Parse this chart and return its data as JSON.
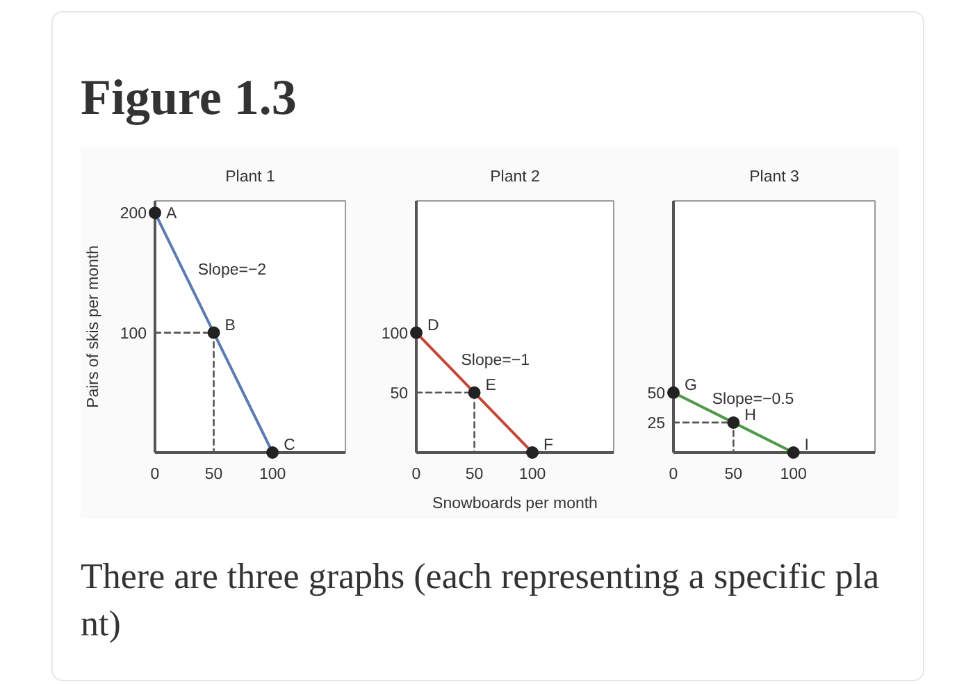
{
  "chart_data": [
    {
      "type": "other",
      "title": "Figure 1.3"
    },
    {
      "type": "line",
      "title": "Plant 1",
      "ylabel": "Pairs of skis per month",
      "xlim": [
        0,
        162
      ],
      "ylim": [
        0,
        210
      ],
      "xticks": [
        0,
        50,
        100
      ],
      "yticks": [
        100,
        200
      ],
      "series": [
        {
          "type": "line",
          "line_style": "dashed",
          "color": "#555555",
          "x": [
            0,
            50,
            50
          ],
          "values": [
            100,
            100,
            0
          ]
        },
        {
          "type": "line",
          "color": "#5b7bb2",
          "x": [
            0,
            50,
            100
          ],
          "values": [
            200,
            100,
            0
          ]
        },
        {
          "type": "scatter",
          "marker": "circle",
          "color": "#222222",
          "x": [
            0,
            50,
            100
          ],
          "values": [
            200,
            100,
            0
          ]
        }
      ],
      "annotations": [
        {
          "text": "A",
          "x": 0,
          "y": 200
        },
        {
          "text": "B",
          "x": 50,
          "y": 100
        },
        {
          "text": "C",
          "x": 100,
          "y": 0
        },
        {
          "text": "Slope=−2",
          "x": 27,
          "y": 146
        }
      ]
    },
    {
      "type": "line",
      "title": "Plant 2",
      "xlabel": "Snowboards per month",
      "xlim": [
        0,
        170
      ],
      "ylim": [
        0,
        210
      ],
      "xticks": [
        0,
        50,
        100
      ],
      "yticks": [
        50,
        100
      ],
      "series": [
        {
          "type": "line",
          "line_style": "dashed",
          "color": "#555555",
          "x": [
            0,
            50,
            50
          ],
          "values": [
            50,
            50,
            0
          ]
        },
        {
          "type": "line",
          "color": "#c4473a",
          "x": [
            0,
            50,
            100
          ],
          "values": [
            100,
            50,
            0
          ]
        },
        {
          "type": "scatter",
          "marker": "circle",
          "color": "#222222",
          "x": [
            0,
            50,
            100
          ],
          "values": [
            100,
            50,
            0
          ]
        }
      ],
      "annotations": [
        {
          "text": "D",
          "x": 0,
          "y": 100
        },
        {
          "text": "E",
          "x": 50,
          "y": 50
        },
        {
          "text": "F",
          "x": 100,
          "y": 0
        },
        {
          "text": "Slope=−1",
          "x": 29,
          "y": 71
        }
      ]
    },
    {
      "type": "line",
      "title": "Plant 3",
      "xlim": [
        0,
        168
      ],
      "ylim": [
        0,
        210
      ],
      "xticks": [
        0,
        50,
        100
      ],
      "yticks": [
        25,
        50
      ],
      "series": [
        {
          "type": "line",
          "line_style": "dashed",
          "color": "#555555",
          "x": [
            0,
            50,
            50
          ],
          "values": [
            25,
            25,
            0
          ]
        },
        {
          "type": "line",
          "color": "#4e9a4a",
          "x": [
            0,
            50,
            100
          ],
          "values": [
            50,
            25,
            0
          ]
        },
        {
          "type": "scatter",
          "marker": "circle",
          "color": "#222222",
          "x": [
            0,
            50,
            100
          ],
          "values": [
            50,
            25,
            0
          ]
        }
      ],
      "annotations": [
        {
          "text": "G",
          "x": 0,
          "y": 50
        },
        {
          "text": "H",
          "x": 50,
          "y": 25
        },
        {
          "text": "I",
          "x": 100,
          "y": 0
        },
        {
          "text": "Slope=−0.5",
          "x": 23,
          "y": 38.5
        }
      ]
    },
    {
      "type": "other",
      "annotations": [
        "There are three graphs (each representing a specific plant)"
      ]
    }
  ]
}
